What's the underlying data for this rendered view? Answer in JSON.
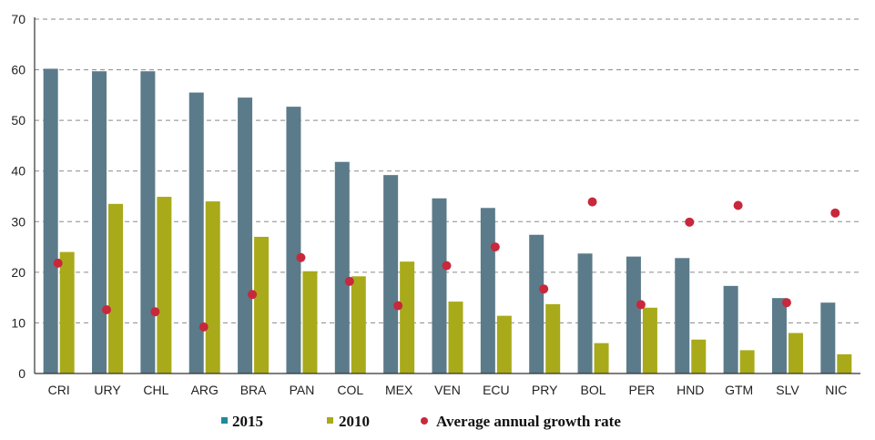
{
  "colors": {
    "series_2015": "#5b7b8a",
    "series_2010": "#a8aa1a",
    "growth": "#c8283c",
    "legend_2015": "#1f8a9a",
    "grid": "#8a8a8a",
    "axis": "#333333"
  },
  "chart_data": {
    "type": "bar",
    "categories": [
      "CRI",
      "URY",
      "CHL",
      "ARG",
      "BRA",
      "PAN",
      "COL",
      "MEX",
      "VEN",
      "ECU",
      "PRY",
      "BOL",
      "PER",
      "HND",
      "GTM",
      "SLV",
      "NIC"
    ],
    "series": [
      {
        "name": "2015",
        "type": "bar",
        "values": [
          60.2,
          59.7,
          59.7,
          55.5,
          54.5,
          52.7,
          41.8,
          39.2,
          34.6,
          32.7,
          27.4,
          23.7,
          23.1,
          22.8,
          17.3,
          14.9,
          14.0
        ]
      },
      {
        "name": "2010",
        "type": "bar",
        "values": [
          24.0,
          33.5,
          34.9,
          34.0,
          27.0,
          20.2,
          19.2,
          22.1,
          14.2,
          11.4,
          13.7,
          6.0,
          13.0,
          6.7,
          4.6,
          8.0,
          3.8
        ]
      },
      {
        "name": "Average annual growth rate",
        "type": "scatter",
        "values": [
          21.8,
          12.6,
          12.2,
          9.2,
          15.6,
          22.9,
          18.2,
          13.4,
          21.3,
          25.0,
          16.7,
          33.9,
          13.6,
          29.9,
          33.2,
          14.0,
          31.7
        ]
      }
    ],
    "ylim": [
      0,
      70
    ],
    "yticks": [
      "0",
      "10",
      "20",
      "30",
      "40",
      "50",
      "60",
      "70"
    ],
    "grid": true,
    "legend_position": "bottom"
  }
}
